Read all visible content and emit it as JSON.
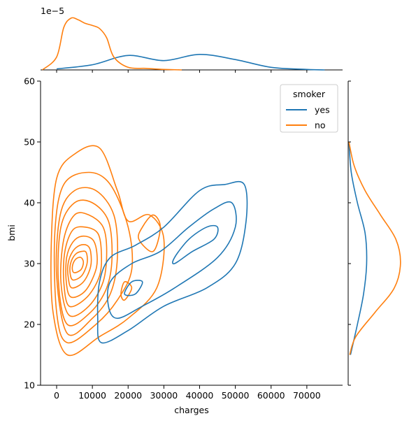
{
  "chart_data": {
    "type": "kde-jointplot",
    "title": "",
    "xlabel": "charges",
    "ylabel": "bmi",
    "xlim": [
      -4500,
      80000
    ],
    "ylim": [
      10,
      60
    ],
    "xticks": [
      0,
      10000,
      20000,
      30000,
      40000,
      50000,
      60000,
      70000
    ],
    "yticks": [
      10,
      20,
      30,
      40,
      50,
      60
    ],
    "top_marginal_offset_label": "1e−5",
    "legend": {
      "title": "smoker",
      "placement": "top-right",
      "entries": [
        "yes",
        "no"
      ]
    },
    "colors": {
      "yes": "#1f77b4",
      "no": "#ff7f0e"
    },
    "series": [
      {
        "name": "yes",
        "joint_contours": [
          [
            [
              12500,
              17
            ],
            [
              20000,
              19
            ],
            [
              30000,
              23
            ],
            [
              42000,
              26
            ],
            [
              50000,
              30
            ],
            [
              53000,
              37
            ],
            [
              52500,
              43
            ],
            [
              47000,
              43
            ],
            [
              40000,
              42
            ],
            [
              30000,
              36
            ],
            [
              22000,
              33
            ],
            [
              15000,
              31
            ],
            [
              12000,
              27
            ],
            [
              11500,
              21
            ],
            [
              12500,
              17
            ]
          ],
          [
            [
              17000,
              21
            ],
            [
              24000,
              23
            ],
            [
              33000,
              26
            ],
            [
              45000,
              31
            ],
            [
              50000,
              36
            ],
            [
              49000,
              40
            ],
            [
              44000,
              39
            ],
            [
              37000,
              36
            ],
            [
              29000,
              32
            ],
            [
              21000,
              30
            ],
            [
              15000,
              27
            ],
            [
              14500,
              23
            ],
            [
              17000,
              21
            ]
          ],
          [
            [
              22000,
              25
            ],
            [
              24000,
              27
            ],
            [
              21000,
              27
            ],
            [
              19000,
              25
            ],
            [
              22000,
              25
            ]
          ],
          [
            [
              33000,
              30
            ],
            [
              38000,
              32
            ],
            [
              44000,
              34
            ],
            [
              45000,
              36
            ],
            [
              42000,
              36
            ],
            [
              37000,
              34
            ],
            [
              33000,
              31
            ],
            [
              33000,
              30
            ]
          ]
        ],
        "marginal_x": {
          "x": [
            0,
            10000,
            20000,
            30000,
            40000,
            50000,
            60000,
            70000,
            75000
          ],
          "y": [
            0.02,
            0.1,
            0.28,
            0.18,
            0.3,
            0.2,
            0.05,
            0.01,
            0
          ]
        },
        "marginal_y": {
          "y": [
            15,
            20,
            25,
            30,
            35,
            40,
            45,
            50
          ],
          "density": [
            0.003,
            0.012,
            0.02,
            0.024,
            0.022,
            0.012,
            0.004,
            0.001
          ]
        }
      },
      {
        "name": "no",
        "joint_contours": [
          [
            [
              3000,
              15
            ],
            [
              12000,
              18
            ],
            [
              20000,
              21
            ],
            [
              28000,
              26
            ],
            [
              30000,
              34
            ],
            [
              26000,
              38
            ],
            [
              20000,
              37
            ],
            [
              17000,
              42
            ],
            [
              12000,
              49
            ],
            [
              5000,
              48
            ],
            [
              0,
              44
            ],
            [
              -1500,
              33
            ],
            [
              -1000,
              22
            ],
            [
              3000,
              15
            ]
          ],
          [
            [
              3000,
              17
            ],
            [
              11000,
              20
            ],
            [
              17000,
              24
            ],
            [
              21000,
              29
            ],
            [
              20000,
              36
            ],
            [
              15000,
              43
            ],
            [
              9000,
              45
            ],
            [
              2000,
              43
            ],
            [
              -500,
              35
            ],
            [
              0,
              22
            ],
            [
              3000,
              17
            ]
          ],
          [
            [
              3000,
              18.5
            ],
            [
              10000,
              21
            ],
            [
              15000,
              25
            ],
            [
              17000,
              31
            ],
            [
              16000,
              38
            ],
            [
              11000,
              42
            ],
            [
              5000,
              42
            ],
            [
              1000,
              38
            ],
            [
              0,
              28
            ],
            [
              3000,
              18.5
            ]
          ],
          [
            [
              3000,
              20
            ],
            [
              9500,
              22
            ],
            [
              14000,
              26
            ],
            [
              15500,
              31
            ],
            [
              14500,
              37
            ],
            [
              10000,
              40
            ],
            [
              5000,
              40
            ],
            [
              1200,
              36
            ],
            [
              500,
              27
            ],
            [
              3000,
              20
            ]
          ],
          [
            [
              3500,
              21.5
            ],
            [
              9000,
              23
            ],
            [
              13000,
              27
            ],
            [
              14000,
              32
            ],
            [
              13000,
              36
            ],
            [
              9000,
              38
            ],
            [
              5000,
              38
            ],
            [
              2000,
              34
            ],
            [
              1200,
              27
            ],
            [
              3500,
              21.5
            ]
          ],
          [
            [
              3500,
              23
            ],
            [
              8500,
              24.5
            ],
            [
              12000,
              28
            ],
            [
              12500,
              32
            ],
            [
              11500,
              35
            ],
            [
              8000,
              36
            ],
            [
              4500,
              35.5
            ],
            [
              2300,
              32
            ],
            [
              2000,
              27
            ],
            [
              3500,
              23
            ]
          ],
          [
            [
              4000,
              24.5
            ],
            [
              8000,
              25.5
            ],
            [
              11000,
              29
            ],
            [
              11200,
              32
            ],
            [
              10000,
              34
            ],
            [
              7000,
              34.5
            ],
            [
              4500,
              33.5
            ],
            [
              2800,
              31
            ],
            [
              2700,
              27
            ],
            [
              4000,
              24.5
            ]
          ],
          [
            [
              4300,
              26
            ],
            [
              7500,
              27
            ],
            [
              9500,
              29.5
            ],
            [
              9500,
              32
            ],
            [
              8500,
              33
            ],
            [
              6500,
              33
            ],
            [
              4500,
              32
            ],
            [
              3200,
              30
            ],
            [
              3300,
              27.5
            ],
            [
              4300,
              26
            ]
          ],
          [
            [
              4600,
              27.3
            ],
            [
              7000,
              28
            ],
            [
              8500,
              30
            ],
            [
              8300,
              31.8
            ],
            [
              7000,
              32
            ],
            [
              5200,
              31.5
            ],
            [
              3900,
              30
            ],
            [
              3800,
              28.3
            ],
            [
              4600,
              27.3
            ]
          ],
          [
            [
              5000,
              28.5
            ],
            [
              6800,
              29
            ],
            [
              7500,
              30.2
            ],
            [
              6800,
              31
            ],
            [
              5500,
              30.8
            ],
            [
              4600,
              30
            ],
            [
              4400,
              29
            ],
            [
              5000,
              28.5
            ]
          ],
          [
            [
              27000,
              32
            ],
            [
              29000,
              36
            ],
            [
              27000,
              38
            ],
            [
              24000,
              36
            ],
            [
              23000,
              34
            ],
            [
              27000,
              32
            ]
          ],
          [
            [
              19000,
              24
            ],
            [
              21000,
              26
            ],
            [
              19000,
              27
            ],
            [
              18000,
              25
            ],
            [
              19000,
              24
            ]
          ]
        ],
        "marginal_x": {
          "x": [
            -4000,
            0,
            2000,
            4000,
            6000,
            8000,
            10000,
            12000,
            14000,
            16000,
            20000,
            25000,
            30000,
            35000
          ],
          "y": [
            0,
            0.25,
            0.82,
            1.0,
            0.97,
            0.9,
            0.86,
            0.8,
            0.62,
            0.25,
            0.05,
            0.03,
            0.01,
            0
          ]
        },
        "marginal_y": {
          "y": [
            15,
            18,
            22,
            26,
            30,
            34,
            38,
            42,
            46,
            50
          ],
          "density": [
            0.002,
            0.01,
            0.035,
            0.06,
            0.068,
            0.062,
            0.042,
            0.022,
            0.008,
            0.001
          ]
        }
      }
    ]
  }
}
